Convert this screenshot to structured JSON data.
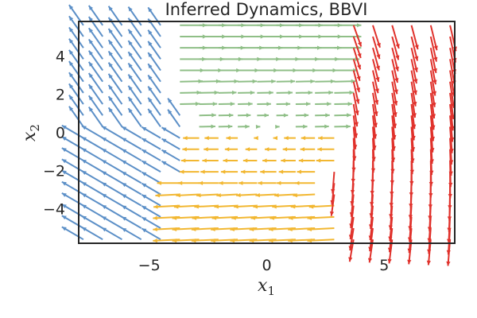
{
  "chart_data": {
    "type": "quiver",
    "title": "Inferred Dynamics, BBVI",
    "xlabel": "x",
    "xlabel_sub": "1",
    "ylabel": "x",
    "ylabel_sub": "2",
    "xlim": [
      -8,
      8
    ],
    "ylim": [
      -5.8,
      5.8
    ],
    "xticks": [
      -5,
      0,
      5
    ],
    "xtick_labels": [
      "−5",
      "0",
      "5"
    ],
    "yticks": [
      -4,
      -2,
      0,
      2,
      4
    ],
    "ytick_labels": [
      "−4",
      "−2",
      "0",
      "2",
      "4"
    ],
    "grid": false,
    "grid_n": 20,
    "regions": [
      {
        "color": "#5b8fc7",
        "description_rule": "left: x < -4 (upper) or x < -3 (lower)",
        "flow": "counter-clockwise, pointing up-left"
      },
      {
        "color": "#8fbf87",
        "description_rule": "upper middle",
        "flow": "rightward"
      },
      {
        "color": "#f2b731",
        "description_rule": "lower middle",
        "flow": "leftward"
      },
      {
        "color": "#e0312b",
        "description_rule": "right",
        "flow": "downward"
      }
    ],
    "colors": {
      "blue": "#5b8fc7",
      "green": "#8fbf87",
      "yellow": "#f2b731",
      "red": "#e0312b"
    }
  }
}
